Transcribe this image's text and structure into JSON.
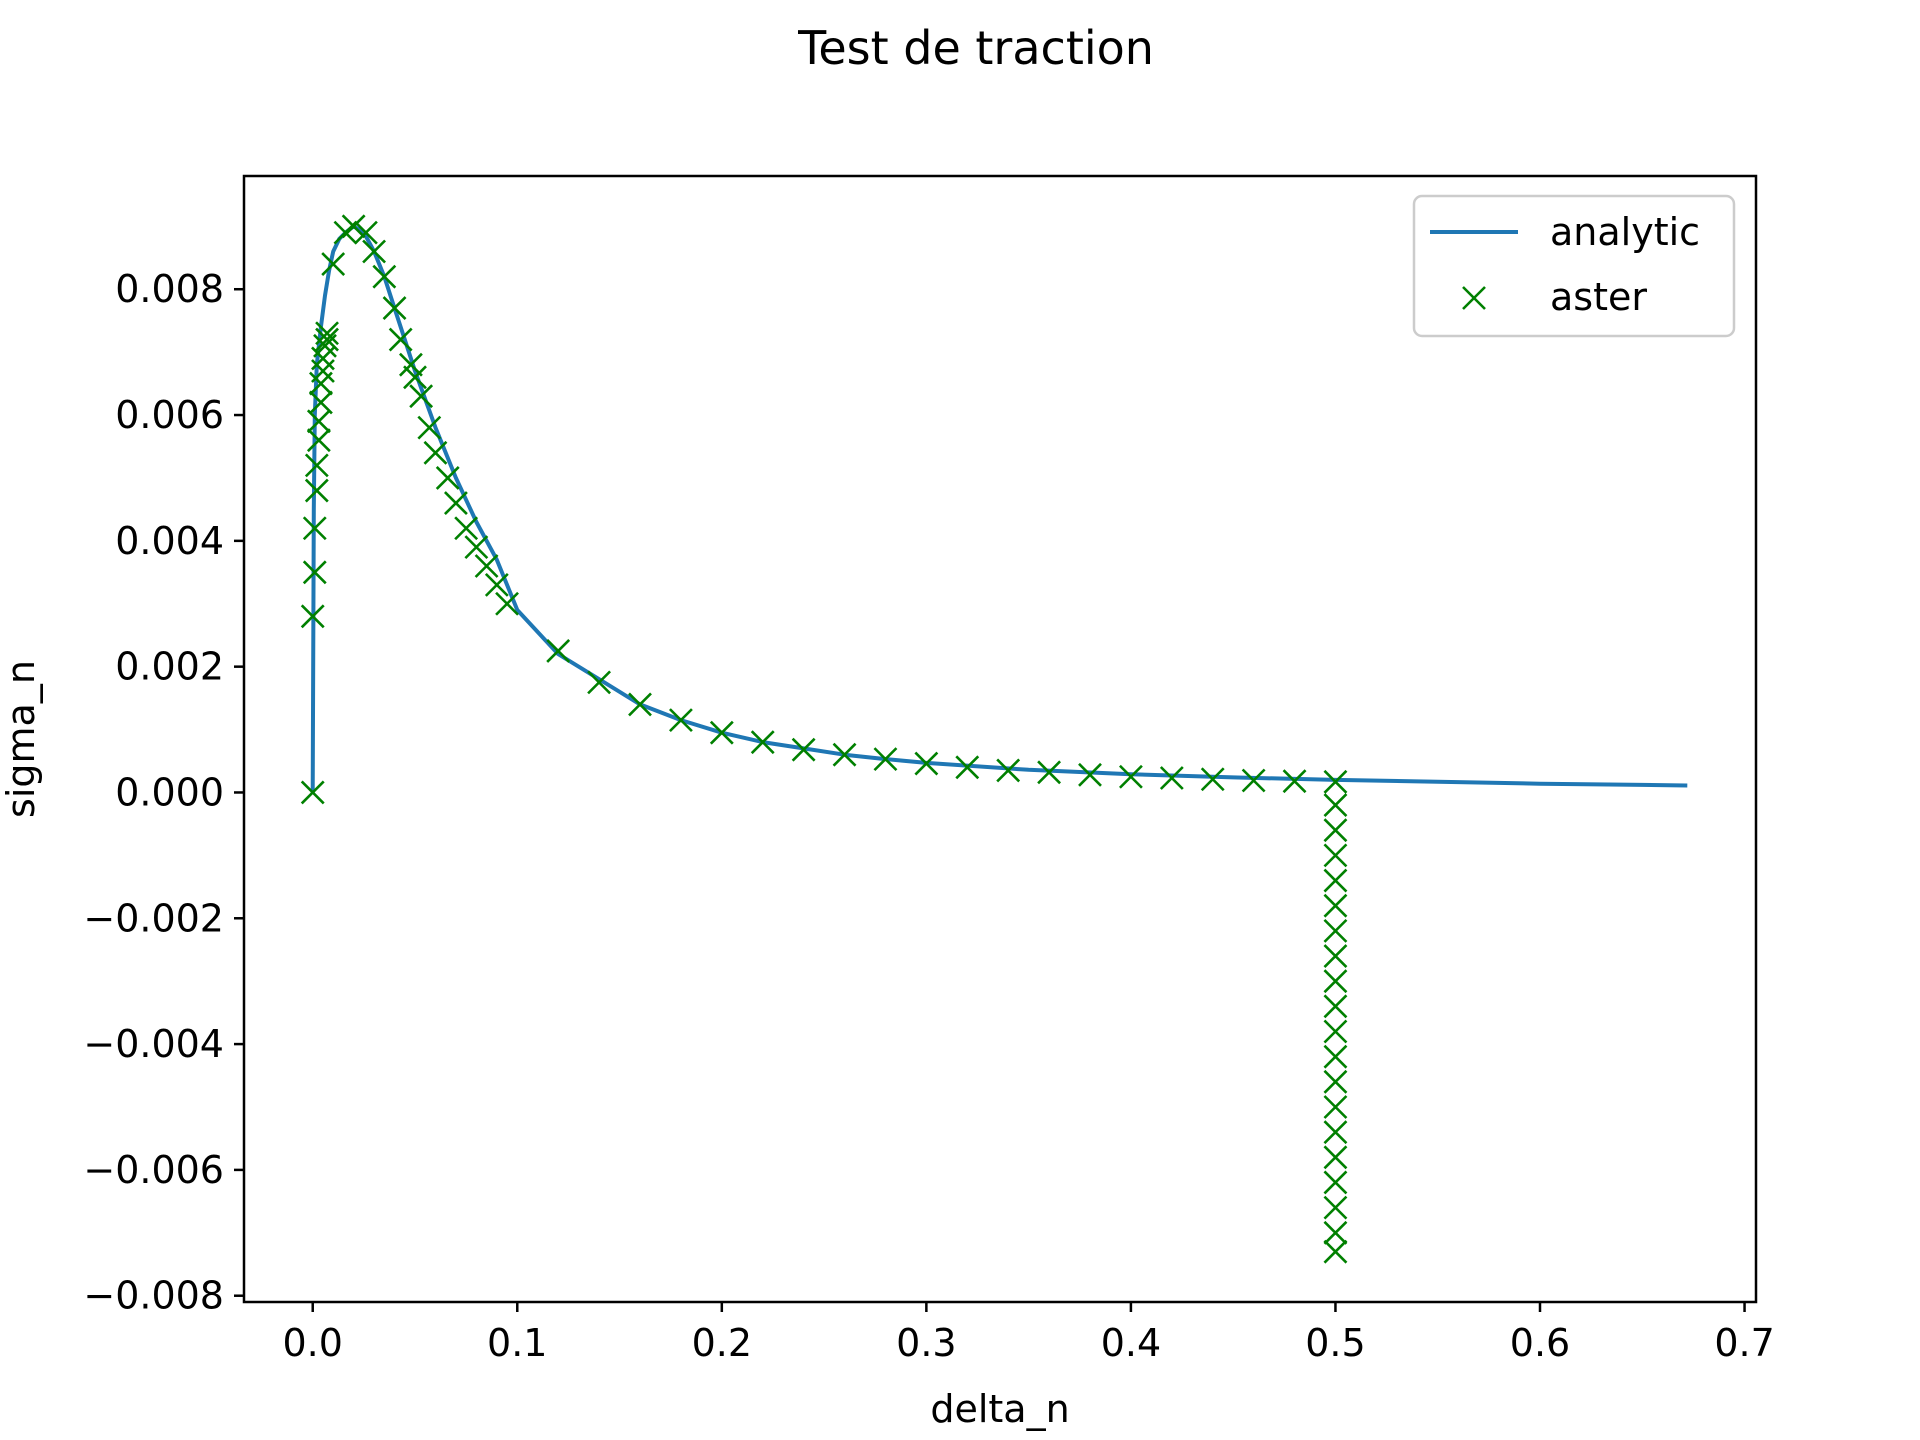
{
  "chart_data": {
    "type": "line",
    "title": "Test de traction",
    "xlabel": "delta_n",
    "ylabel": "sigma_n",
    "xlim": [
      -0.0336,
      0.7056
    ],
    "ylim": [
      -0.0081,
      0.0098
    ],
    "xticks": [
      0.0,
      0.1,
      0.2,
      0.3,
      0.4,
      0.5,
      0.6,
      0.7
    ],
    "xtick_labels": [
      "0.0",
      "0.1",
      "0.2",
      "0.3",
      "0.4",
      "0.5",
      "0.6",
      "0.7"
    ],
    "yticks": [
      0.008,
      0.006,
      0.004,
      0.002,
      0.0,
      -0.002,
      -0.004,
      -0.006,
      -0.008
    ],
    "ytick_labels": [
      "0.008",
      "0.006",
      "0.004",
      "0.002",
      "0.000",
      "−0.002",
      "−0.004",
      "−0.006",
      "−0.008"
    ],
    "grid": false,
    "legend": "top-right",
    "series": [
      {
        "name": "analytic",
        "style": "line",
        "color": "#1f77b4",
        "points": [
          [
            0.0,
            0.0
          ],
          [
            0.0005,
            0.0045
          ],
          [
            0.001,
            0.006
          ],
          [
            0.002,
            0.0068
          ],
          [
            0.004,
            0.0074
          ],
          [
            0.006,
            0.0079
          ],
          [
            0.008,
            0.0083
          ],
          [
            0.01,
            0.0086
          ],
          [
            0.013,
            0.0088
          ],
          [
            0.016,
            0.0089
          ],
          [
            0.02,
            0.009
          ],
          [
            0.025,
            0.0089
          ],
          [
            0.03,
            0.0086
          ],
          [
            0.035,
            0.0082
          ],
          [
            0.04,
            0.0077
          ],
          [
            0.045,
            0.0072
          ],
          [
            0.05,
            0.0067
          ],
          [
            0.06,
            0.0058
          ],
          [
            0.07,
            0.005
          ],
          [
            0.08,
            0.0043
          ],
          [
            0.09,
            0.0037
          ],
          [
            0.1,
            0.0029
          ],
          [
            0.12,
            0.0022
          ],
          [
            0.14,
            0.0018
          ],
          [
            0.16,
            0.0014
          ],
          [
            0.18,
            0.00115
          ],
          [
            0.2,
            0.00095
          ],
          [
            0.22,
            0.0008
          ],
          [
            0.24,
            0.0007
          ],
          [
            0.26,
            0.0006
          ],
          [
            0.28,
            0.00053
          ],
          [
            0.3,
            0.00047
          ],
          [
            0.35,
            0.00036
          ],
          [
            0.4,
            0.00029
          ],
          [
            0.45,
            0.00024
          ],
          [
            0.5,
            0.0002
          ],
          [
            0.55,
            0.00017
          ],
          [
            0.6,
            0.00014
          ],
          [
            0.65,
            0.00012
          ],
          [
            0.672,
            0.00011
          ]
        ]
      },
      {
        "name": "aster",
        "style": "marker-x",
        "color": "#008000",
        "points": [
          [
            0.0,
            0.0
          ],
          [
            0.0,
            0.0028
          ],
          [
            0.001,
            0.0035
          ],
          [
            0.001,
            0.0042
          ],
          [
            0.002,
            0.0048
          ],
          [
            0.002,
            0.0052
          ],
          [
            0.003,
            0.0056
          ],
          [
            0.003,
            0.0059
          ],
          [
            0.004,
            0.0062
          ],
          [
            0.004,
            0.0065
          ],
          [
            0.005,
            0.0067
          ],
          [
            0.005,
            0.0069
          ],
          [
            0.006,
            0.0071
          ],
          [
            0.007,
            0.0072
          ],
          [
            0.007,
            0.0073
          ],
          [
            0.01,
            0.0084
          ],
          [
            0.016,
            0.0089
          ],
          [
            0.02,
            0.009
          ],
          [
            0.026,
            0.0089
          ],
          [
            0.03,
            0.0086
          ],
          [
            0.035,
            0.0082
          ],
          [
            0.04,
            0.0077
          ],
          [
            0.043,
            0.0072
          ],
          [
            0.048,
            0.0068
          ],
          [
            0.05,
            0.0066
          ],
          [
            0.053,
            0.0063
          ],
          [
            0.057,
            0.0058
          ],
          [
            0.06,
            0.0054
          ],
          [
            0.066,
            0.005
          ],
          [
            0.07,
            0.0046
          ],
          [
            0.075,
            0.0042
          ],
          [
            0.08,
            0.0039
          ],
          [
            0.085,
            0.0036
          ],
          [
            0.09,
            0.0033
          ],
          [
            0.095,
            0.003
          ],
          [
            0.12,
            0.00225
          ],
          [
            0.14,
            0.00175
          ],
          [
            0.16,
            0.0014
          ],
          [
            0.18,
            0.00115
          ],
          [
            0.2,
            0.00095
          ],
          [
            0.22,
            0.0008
          ],
          [
            0.24,
            0.00068
          ],
          [
            0.26,
            0.0006
          ],
          [
            0.28,
            0.00053
          ],
          [
            0.3,
            0.00046
          ],
          [
            0.32,
            0.0004
          ],
          [
            0.34,
            0.00035
          ],
          [
            0.36,
            0.00032
          ],
          [
            0.38,
            0.00028
          ],
          [
            0.4,
            0.00025
          ],
          [
            0.42,
            0.00023
          ],
          [
            0.44,
            0.00021
          ],
          [
            0.46,
            0.00019
          ],
          [
            0.48,
            0.00018
          ],
          [
            0.5,
            0.00017
          ],
          [
            0.5,
            -0.0002
          ],
          [
            0.5,
            -0.0006
          ],
          [
            0.5,
            -0.001
          ],
          [
            0.5,
            -0.0014
          ],
          [
            0.5,
            -0.0018
          ],
          [
            0.5,
            -0.0022
          ],
          [
            0.5,
            -0.0026
          ],
          [
            0.5,
            -0.003
          ],
          [
            0.5,
            -0.0034
          ],
          [
            0.5,
            -0.0038
          ],
          [
            0.5,
            -0.0042
          ],
          [
            0.5,
            -0.0046
          ],
          [
            0.5,
            -0.005
          ],
          [
            0.5,
            -0.0054
          ],
          [
            0.5,
            -0.0058
          ],
          [
            0.5,
            -0.0062
          ],
          [
            0.5,
            -0.0066
          ],
          [
            0.5,
            -0.007
          ],
          [
            0.5,
            -0.0073
          ]
        ]
      }
    ]
  }
}
